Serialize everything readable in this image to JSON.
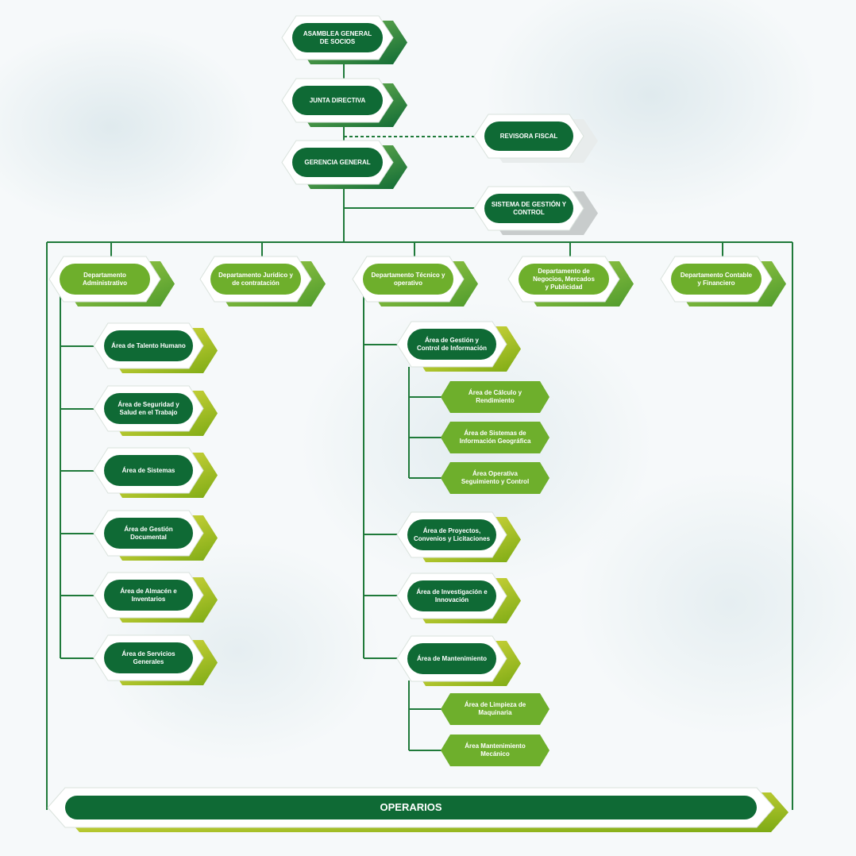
{
  "colors": {
    "dark_green": "#0f6a35",
    "mid_green": "#3d8f2e",
    "light_green": "#6eaf2c",
    "yellow": "#d4c800",
    "grey": "#c8cccc",
    "line": "#1f7a3a"
  },
  "top": {
    "asamblea": "ASAMBLEA GENERAL\nDE SOCIOS",
    "junta": "JUNTA DIRECTIVA",
    "gerencia": "GERENCIA GENERAL",
    "revisora": "REVISORA FISCAL",
    "sistema_gestion": "SISTEMA DE GESTIÓN Y\nCONTROL"
  },
  "departments": {
    "administrativo": "Departamento\nAdministrativo",
    "juridico": "Departamento Jurídico y\nde contratación",
    "tecnico": "Departamento Técnico y\noperativo",
    "negocios": "Departamento de\nNegocios, Mercados\ny Publicidad",
    "contable": "Departamento Contable\ny Financiero"
  },
  "admin_areas": {
    "talento": "Área de Talento Humano",
    "seguridad": "Área de Seguridad y\nSalud en el Trabajo",
    "sistemas": "Área de Sistemas",
    "gestion_documental": "Área de Gestión\nDocumental",
    "almacen": "Área de Almacén e\nInventarios",
    "servicios": "Área de Servicios\nGenerales"
  },
  "tech_areas": {
    "gestion_info": "Área de Gestión y\nControl de Información",
    "calculo": "Área de Cálculo y\nRendimiento",
    "sig": "Área de Sistemas de\nInformación Geográfica",
    "operativa": "Área Operativa\nSeguimiento y Control",
    "proyectos": "Área de Proyectos,\nConvenios y Licitaciones",
    "investigacion": "Área de Investigación e\nInnovación",
    "mantenimiento": "Área de Mantenimiento",
    "limpieza": "Área de Limpieza de\nMaquinaria",
    "mecanico": "Área Mantenimiento\nMecánico"
  },
  "operarios": "OPERARIOS"
}
